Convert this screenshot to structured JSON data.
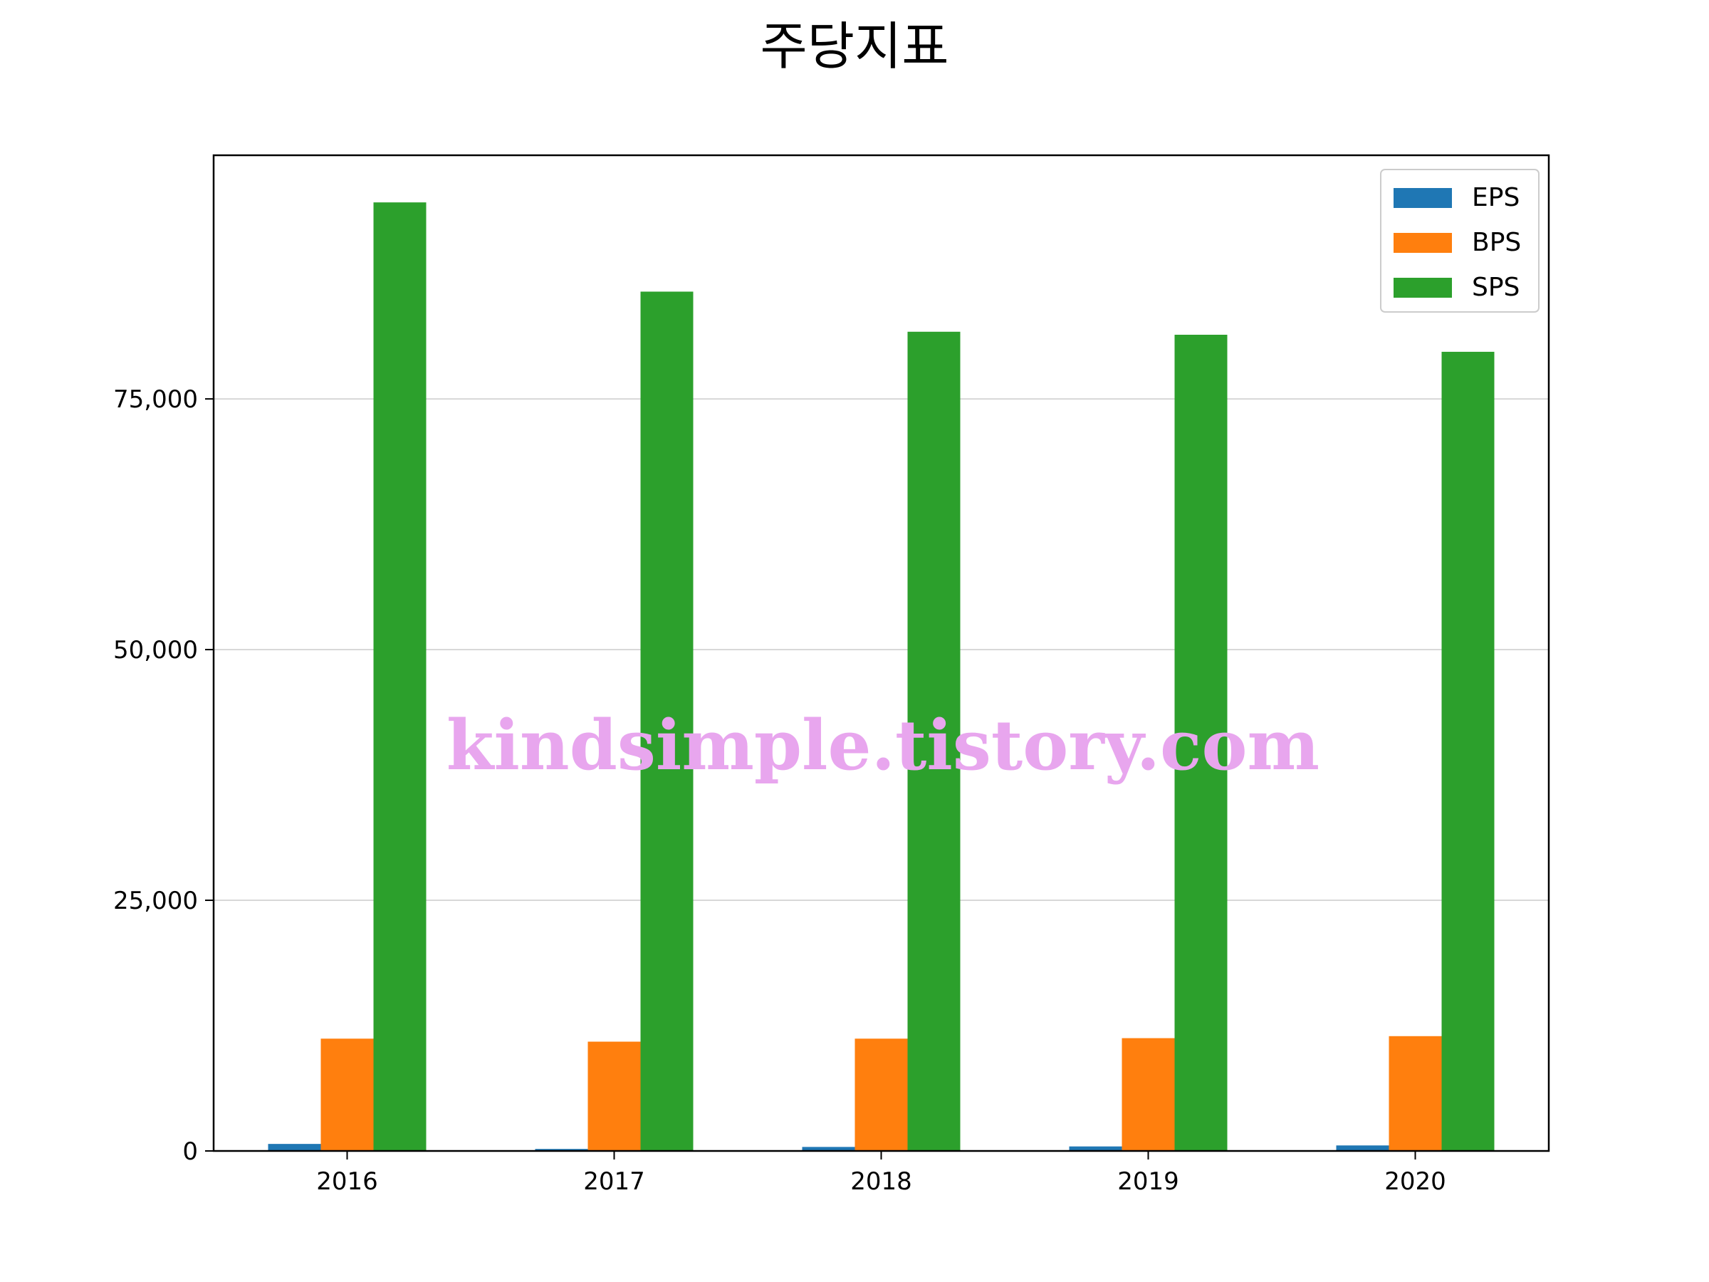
{
  "chart_data": {
    "type": "bar",
    "title": "주당지표",
    "categories": [
      "2016",
      "2017",
      "2018",
      "2019",
      "2020"
    ],
    "series": [
      {
        "name": "EPS",
        "color": "#1f77b4",
        "values": [
          700,
          200,
          400,
          450,
          550
        ]
      },
      {
        "name": "BPS",
        "color": "#ff7f0e",
        "values": [
          11200,
          10900,
          11200,
          11250,
          11450
        ]
      },
      {
        "name": "SPS",
        "color": "#2ca02c",
        "values": [
          94600,
          85700,
          81700,
          81400,
          79700
        ]
      }
    ],
    "ylim": [
      0,
      99300
    ],
    "yticks": [
      0,
      25000,
      50000,
      75000
    ],
    "ytick_labels": [
      "0",
      "25,000",
      "50,000",
      "75,000"
    ],
    "grid": "y",
    "legend_position": "top-right"
  },
  "watermark": "kindsimple.tistory.com"
}
